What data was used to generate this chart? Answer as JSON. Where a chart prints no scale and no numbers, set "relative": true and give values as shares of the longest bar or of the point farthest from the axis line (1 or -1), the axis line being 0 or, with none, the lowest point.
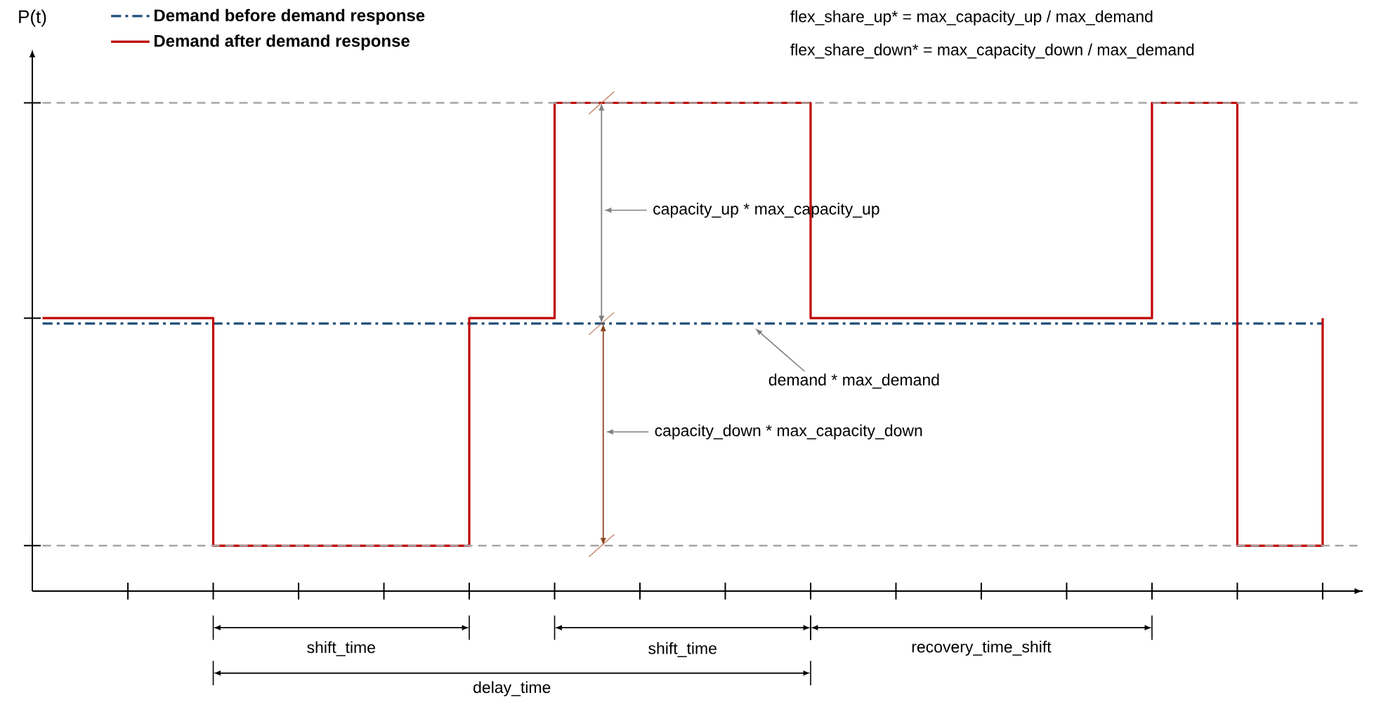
{
  "chart_data": {
    "type": "step",
    "relative": true,
    "ylabel": "P(t)",
    "legend": "top left",
    "categories": [
      null,
      null,
      null,
      null,
      null,
      null,
      null,
      null,
      null,
      null,
      null,
      null,
      null,
      null,
      null,
      null
    ],
    "series": [
      {
        "name": "Demand before demand response",
        "color": "#1f4e79",
        "line_style": "dashdot",
        "values": [
          0.548,
          0.548,
          0.548,
          0.548,
          0.548,
          0.548,
          0.548,
          0.548,
          0.548,
          0.548,
          0.548,
          0.548,
          0.548,
          0.548,
          0.548,
          0.548
        ]
      },
      {
        "name": "Demand after demand response",
        "color": "#c00000",
        "line_style": "solid",
        "values": [
          0.559,
          0.559,
          0.093,
          0.093,
          0.093,
          0.559,
          1,
          1,
          1,
          0.559,
          0.559,
          0.559,
          0.559,
          1,
          0.093,
          0.559
        ]
      }
    ],
    "ref_lines": [
      {
        "axis": "y",
        "value": 1,
        "color": "#a6a6a6",
        "line_style": "dashed"
      },
      {
        "axis": "y",
        "value": 0.093,
        "color": "#a6a6a6",
        "line_style": "dashed"
      }
    ],
    "annotations": [
      "flex_share_up* = max_capacity_up / max_demand",
      "flex_share_down* = max_capacity_down / max_demand",
      "capacity_up * max_capacity_up",
      "demand * max_demand",
      "capacity_down * max_capacity_down",
      "shift_time",
      "shift_time",
      "recovery_time_shift",
      "delay_time"
    ]
  }
}
